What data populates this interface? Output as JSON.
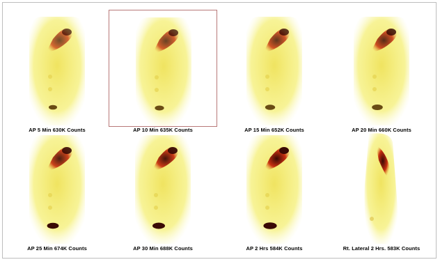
{
  "selected_index": 1,
  "colors": {
    "background": "#ffffff",
    "selection_border": "#b87878",
    "body_glow": "#f4ee6a",
    "tracer_hot": "#3a0a04",
    "tracer_mid": "#c83010"
  },
  "images": [
    {
      "view": "anterior",
      "caption": "AP 5  Min 630K Counts"
    },
    {
      "view": "anterior",
      "caption": "AP 10  Min 635K Counts"
    },
    {
      "view": "anterior",
      "caption": "AP 15  Min 652K Counts"
    },
    {
      "view": "anterior",
      "caption": "AP 20  Min 660K Counts"
    },
    {
      "view": "anterior",
      "caption": "AP 25  Min 674K Counts"
    },
    {
      "view": "anterior",
      "caption": "AP 30  Min 688K Counts"
    },
    {
      "view": "anterior",
      "caption": "AP 2 Hrs 584K Counts"
    },
    {
      "view": "lateral",
      "caption": "Rt. Lateral  2 Hrs. 583K Counts"
    }
  ]
}
